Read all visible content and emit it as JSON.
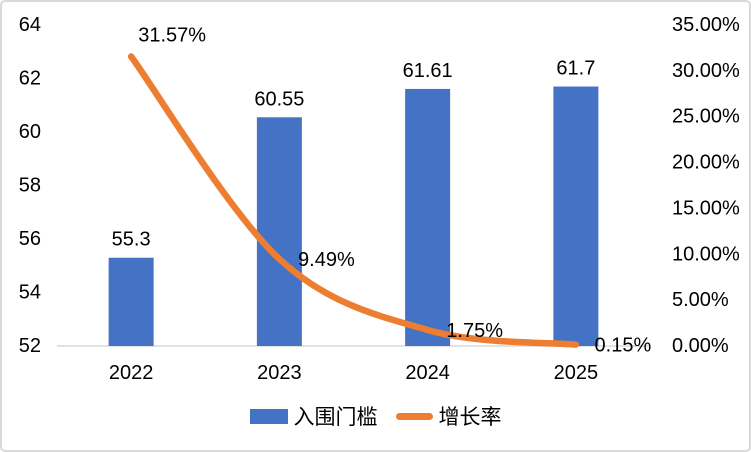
{
  "chart_data": {
    "type": "combo",
    "title": "",
    "categories": [
      "2022",
      "2023",
      "2024",
      "2025"
    ],
    "series": [
      {
        "name": "入围门槛",
        "chart_type": "bar",
        "axis": "left",
        "values": [
          55.3,
          60.55,
          61.61,
          61.7
        ],
        "data_labels": [
          "55.3",
          "60.55",
          "61.61",
          "61.7"
        ],
        "color": "#4472C4"
      },
      {
        "name": "增长率",
        "chart_type": "line",
        "axis": "right",
        "values": [
          31.57,
          9.49,
          1.75,
          0.15
        ],
        "data_labels": [
          "31.57%",
          "9.49%",
          "1.75%",
          "0.15%"
        ],
        "color": "#ED7D31",
        "smooth": true
      }
    ],
    "left_axis": {
      "min": 52,
      "max": 64,
      "step": 2,
      "tick_labels": [
        "64",
        "62",
        "60",
        "58",
        "56",
        "54",
        "52"
      ]
    },
    "right_axis": {
      "min": 0,
      "max": 35,
      "step": 5,
      "tick_labels": [
        "35.00%",
        "30.00%",
        "25.00%",
        "20.00%",
        "15.00%",
        "10.00%",
        "5.00%",
        "0.00%"
      ]
    },
    "grid": false,
    "legend_position": "bottom",
    "colors": {
      "bar": "#4472C4",
      "line": "#ED7D31",
      "axis_line": "#D9D9D9",
      "text": "#000000",
      "border": "#D9D9D9",
      "background": "#FFFFFF"
    }
  }
}
